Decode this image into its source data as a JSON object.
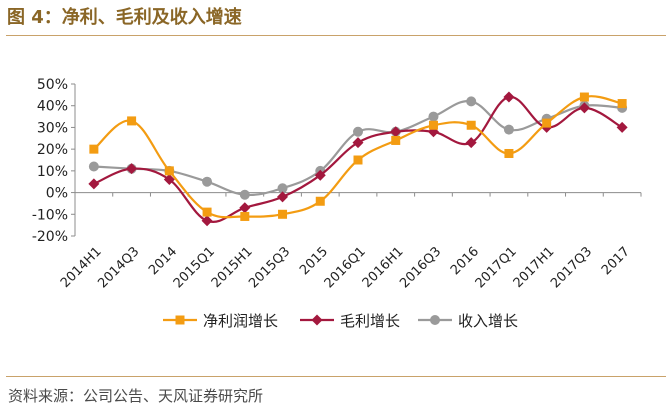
{
  "title": "图 4：净利、毛利及收入增速",
  "source": "资料来源：公司公告、天风证券研究所",
  "chart_data": {
    "type": "line",
    "categories": [
      "2014H1",
      "2014Q3",
      "2014",
      "2015Q1",
      "2015H1",
      "2015Q3",
      "2015",
      "2016Q1",
      "2016H1",
      "2016Q3",
      "2016",
      "2017Q1",
      "2017H1",
      "2017Q3",
      "2017"
    ],
    "y_ticks": [
      "50%",
      "40%",
      "30%",
      "20%",
      "10%",
      "0%",
      "-10%",
      "-20%"
    ],
    "ylim": [
      -20,
      50
    ],
    "grid": false,
    "legend_position": "bottom",
    "series": [
      {
        "name": "净利润增长",
        "color": "#f39c12",
        "marker": "square",
        "values": [
          20,
          33,
          10,
          -9,
          -11,
          -10,
          -4,
          15,
          24,
          31,
          31,
          18,
          32,
          44,
          41
        ]
      },
      {
        "name": "毛利增长",
        "color": "#a3183e",
        "marker": "diamond",
        "values": [
          4,
          11,
          6,
          -13,
          -7,
          -2,
          8,
          23,
          28,
          28,
          23,
          44,
          30,
          39,
          30
        ]
      },
      {
        "name": "收入增长",
        "color": "#9a9a9a",
        "marker": "circle",
        "values": [
          12,
          11,
          10,
          5,
          -1,
          2,
          10,
          28,
          28,
          35,
          42,
          29,
          34,
          40,
          39
        ]
      }
    ]
  }
}
